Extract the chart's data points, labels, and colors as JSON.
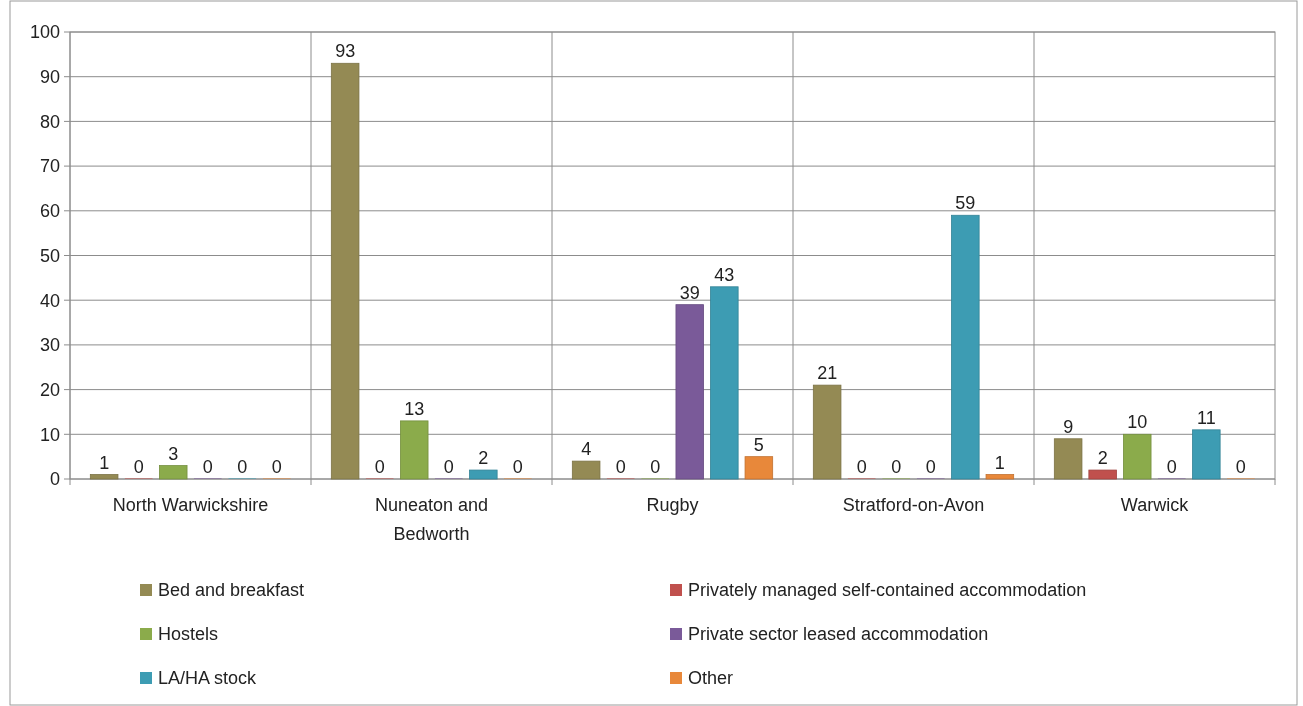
{
  "chart_data": {
    "type": "bar",
    "categories": [
      "North Warwickshire",
      "Nuneaton and Bedworth",
      "Rugby",
      "Stratford-on-Avon",
      "Warwick"
    ],
    "series": [
      {
        "name": "Bed and breakfast",
        "color": "#948a54",
        "values": [
          1,
          93,
          4,
          21,
          9
        ]
      },
      {
        "name": "Privately managed self-contained accommodation",
        "color": "#c0504d",
        "values": [
          0,
          0,
          0,
          0,
          2
        ]
      },
      {
        "name": "Hostels",
        "color": "#8bab4b",
        "values": [
          3,
          13,
          0,
          0,
          10
        ]
      },
      {
        "name": "Private sector leased accommodation",
        "color": "#7a5a99",
        "values": [
          0,
          0,
          39,
          0,
          0
        ]
      },
      {
        "name": "LA/HA stock",
        "color": "#3d9cb3",
        "values": [
          0,
          2,
          43,
          59,
          11
        ]
      },
      {
        "name": "Other",
        "color": "#e8883a",
        "values": [
          0,
          0,
          5,
          1,
          0
        ]
      }
    ],
    "ylim": [
      0,
      100
    ],
    "yticks": [
      0,
      10,
      20,
      30,
      40,
      50,
      60,
      70,
      80,
      90,
      100
    ],
    "grid": "y",
    "data_labels": true,
    "legend": "bottom"
  }
}
